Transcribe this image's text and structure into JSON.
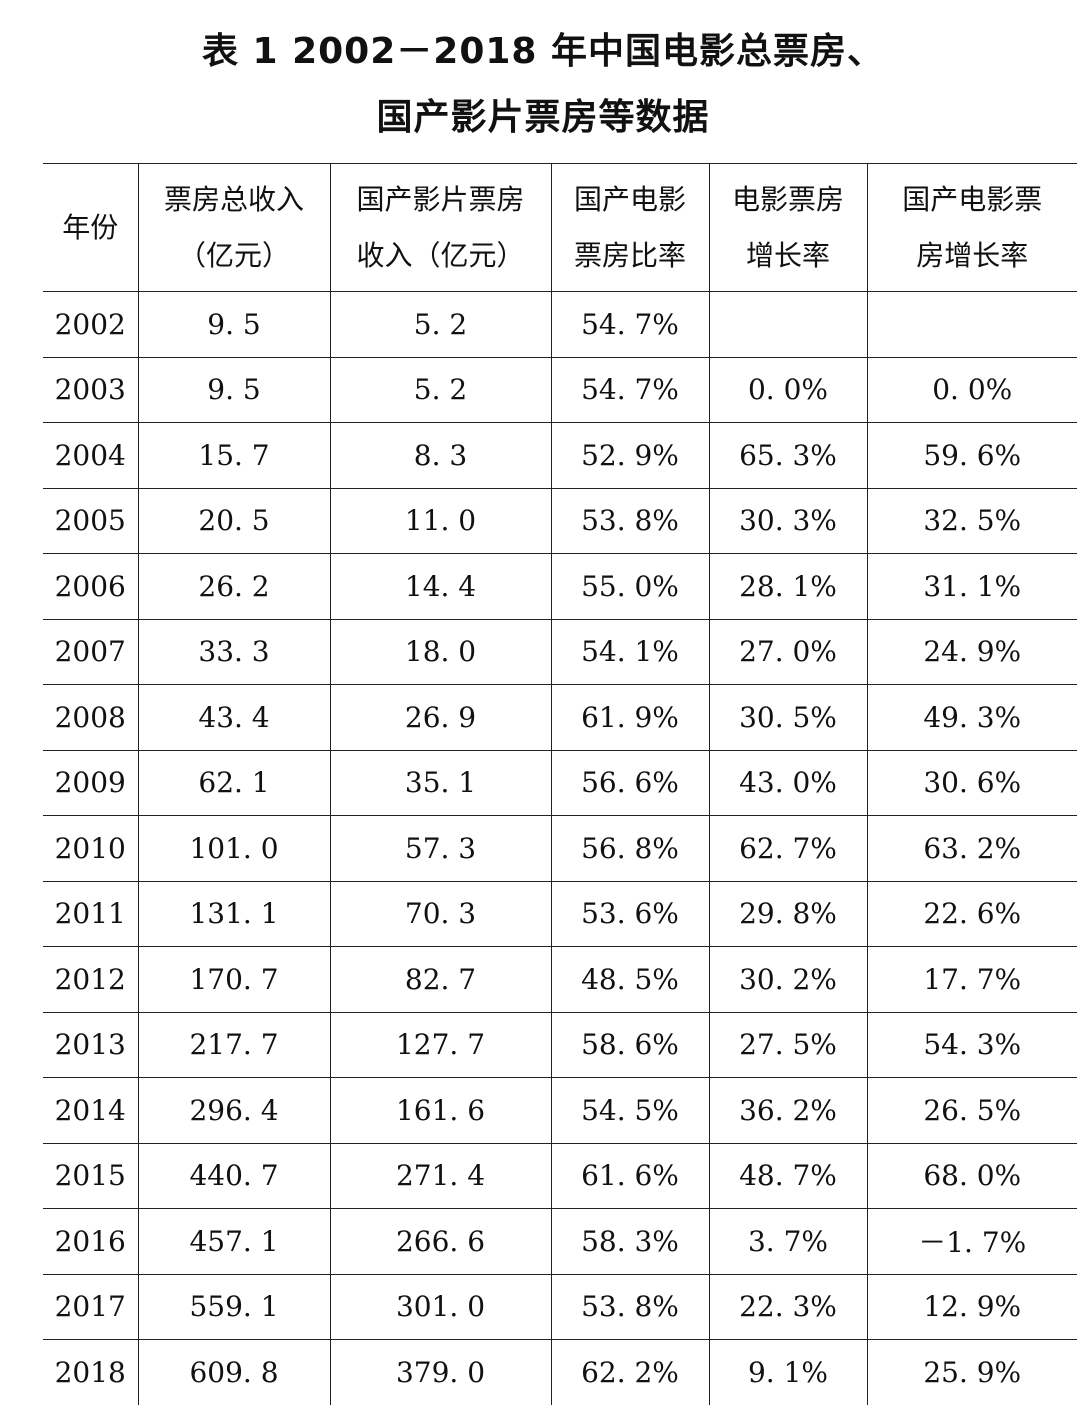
{
  "title": {
    "line1": "表 1 2002－2018 年中国电影总票房、",
    "line2": "国产影片票房等数据"
  },
  "table": {
    "headers": [
      [
        "年份"
      ],
      [
        "票房总收入",
        "（亿元）"
      ],
      [
        "国产影片票房",
        "收入（亿元）"
      ],
      [
        "国产电影",
        "票房比率"
      ],
      [
        "电影票房",
        "增长率"
      ],
      [
        "国产电影票",
        "房增长率"
      ]
    ],
    "rows": [
      [
        "2002",
        "9. 5",
        "5. 2",
        "54. 7%",
        "",
        ""
      ],
      [
        "2003",
        "9. 5",
        "5. 2",
        "54. 7%",
        "0. 0%",
        "0. 0%"
      ],
      [
        "2004",
        "15. 7",
        "8. 3",
        "52. 9%",
        "65. 3%",
        "59. 6%"
      ],
      [
        "2005",
        "20. 5",
        "11. 0",
        "53. 8%",
        "30. 3%",
        "32. 5%"
      ],
      [
        "2006",
        "26. 2",
        "14. 4",
        "55. 0%",
        "28. 1%",
        "31. 1%"
      ],
      [
        "2007",
        "33. 3",
        "18. 0",
        "54. 1%",
        "27. 0%",
        "24. 9%"
      ],
      [
        "2008",
        "43. 4",
        "26. 9",
        "61. 9%",
        "30. 5%",
        "49. 3%"
      ],
      [
        "2009",
        "62. 1",
        "35. 1",
        "56. 6%",
        "43. 0%",
        "30. 6%"
      ],
      [
        "2010",
        "101. 0",
        "57. 3",
        "56. 8%",
        "62. 7%",
        "63. 2%"
      ],
      [
        "2011",
        "131. 1",
        "70. 3",
        "53. 6%",
        "29. 8%",
        "22. 6%"
      ],
      [
        "2012",
        "170. 7",
        "82. 7",
        "48. 5%",
        "30. 2%",
        "17. 7%"
      ],
      [
        "2013",
        "217. 7",
        "127. 7",
        "58. 6%",
        "27. 5%",
        "54. 3%"
      ],
      [
        "2014",
        "296. 4",
        "161. 6",
        "54. 5%",
        "36. 2%",
        "26. 5%"
      ],
      [
        "2015",
        "440. 7",
        "271. 4",
        "61. 6%",
        "48. 7%",
        "68. 0%"
      ],
      [
        "2016",
        "457. 1",
        "266. 6",
        "58. 3%",
        "3. 7%",
        "－1. 7%"
      ],
      [
        "2017",
        "559. 1",
        "301. 0",
        "53. 8%",
        "22. 3%",
        "12. 9%"
      ],
      [
        "2018",
        "609. 8",
        "379. 0",
        "62. 2%",
        "9. 1%",
        "25. 9%"
      ]
    ]
  }
}
